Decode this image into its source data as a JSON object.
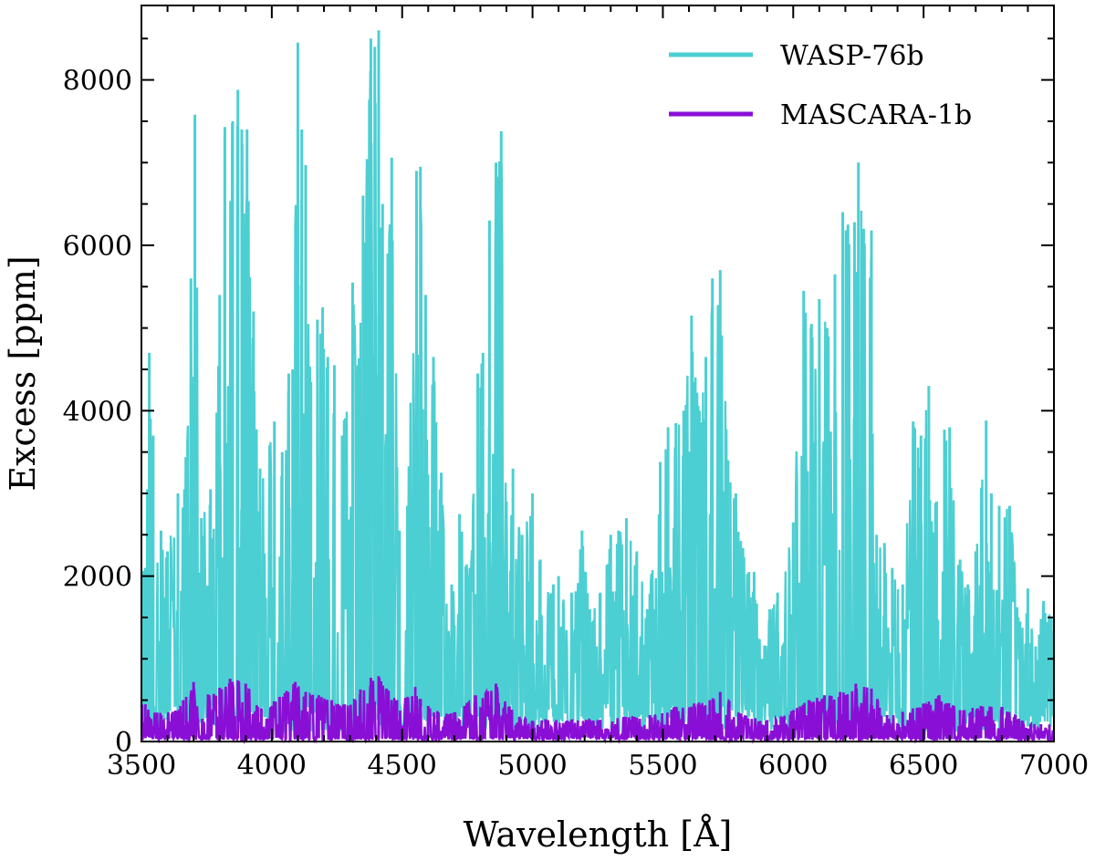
{
  "chart_data": {
    "type": "line",
    "title": "",
    "xlabel": "Wavelength [Å]",
    "ylabel": "Excess [ppm]",
    "xlim": [
      3500,
      7000
    ],
    "ylim": [
      0,
      8900
    ],
    "xticks": [
      3500,
      4000,
      4500,
      5000,
      5500,
      6000,
      6500,
      7000
    ],
    "yticks": [
      0,
      2000,
      4000,
      6000,
      8000
    ],
    "grid": false,
    "legend_position": "top-right",
    "series": [
      {
        "name": "WASP-76b",
        "color": "#4ccfd2",
        "baseline": 300,
        "peaks": [
          [
            3515,
            2100
          ],
          [
            3530,
            4700
          ],
          [
            3545,
            3700
          ],
          [
            3575,
            2550
          ],
          [
            3600,
            2300
          ],
          [
            3640,
            3000
          ],
          [
            3665,
            3050
          ],
          [
            3690,
            5600
          ],
          [
            3705,
            7580
          ],
          [
            3730,
            2700
          ],
          [
            3765,
            3050
          ],
          [
            3800,
            5400
          ],
          [
            3820,
            7430
          ],
          [
            3850,
            7500
          ],
          [
            3870,
            7880
          ],
          [
            3885,
            7400
          ],
          [
            3905,
            7400
          ],
          [
            3930,
            5200
          ],
          [
            3955,
            3300
          ],
          [
            4010,
            3870
          ],
          [
            4040,
            3500
          ],
          [
            4065,
            4450
          ],
          [
            4080,
            4500
          ],
          [
            4100,
            8450
          ],
          [
            4115,
            7400
          ],
          [
            4130,
            6970
          ],
          [
            4150,
            4350
          ],
          [
            4175,
            5100
          ],
          [
            4195,
            5250
          ],
          [
            4215,
            4650
          ],
          [
            4240,
            4550
          ],
          [
            4270,
            3700
          ],
          [
            4310,
            5550
          ],
          [
            4330,
            4550
          ],
          [
            4350,
            6600
          ],
          [
            4380,
            8500
          ],
          [
            4395,
            8400
          ],
          [
            4410,
            8600
          ],
          [
            4425,
            6500
          ],
          [
            4445,
            5900
          ],
          [
            4460,
            7060
          ],
          [
            4490,
            2550
          ],
          [
            4520,
            2850
          ],
          [
            4555,
            6900
          ],
          [
            4570,
            6950
          ],
          [
            4590,
            5400
          ],
          [
            4620,
            4650
          ],
          [
            4650,
            3250
          ],
          [
            4690,
            1900
          ],
          [
            4720,
            2750
          ],
          [
            4760,
            2100
          ],
          [
            4790,
            4450
          ],
          [
            4810,
            4700
          ],
          [
            4835,
            6300
          ],
          [
            4860,
            7000
          ],
          [
            4880,
            7380
          ],
          [
            4900,
            2900
          ],
          [
            4925,
            3300
          ],
          [
            4960,
            2500
          ],
          [
            5000,
            3000
          ],
          [
            5030,
            2200
          ],
          [
            5080,
            1900
          ],
          [
            5100,
            2000
          ],
          [
            5150,
            1800
          ],
          [
            5190,
            2550
          ],
          [
            5220,
            1600
          ],
          [
            5260,
            1800
          ],
          [
            5300,
            2500
          ],
          [
            5330,
            2550
          ],
          [
            5360,
            2700
          ],
          [
            5400,
            2300
          ],
          [
            5440,
            1600
          ],
          [
            5490,
            3380
          ],
          [
            5520,
            3800
          ],
          [
            5550,
            3850
          ],
          [
            5580,
            4000
          ],
          [
            5610,
            5150
          ],
          [
            5640,
            4000
          ],
          [
            5665,
            4650
          ],
          [
            5690,
            5600
          ],
          [
            5720,
            5700
          ],
          [
            5750,
            3400
          ],
          [
            5780,
            3000
          ],
          [
            5830,
            2050
          ],
          [
            5850,
            2050
          ],
          [
            5880,
            1000
          ],
          [
            5910,
            1600
          ],
          [
            5940,
            1800
          ],
          [
            6000,
            2650
          ],
          [
            6040,
            5450
          ],
          [
            6070,
            5050
          ],
          [
            6100,
            5350
          ],
          [
            6130,
            5000
          ],
          [
            6160,
            5650
          ],
          [
            6190,
            6400
          ],
          [
            6210,
            6250
          ],
          [
            6235,
            6280
          ],
          [
            6250,
            7000
          ],
          [
            6270,
            6200
          ],
          [
            6300,
            6180
          ],
          [
            6320,
            2500
          ],
          [
            6350,
            2400
          ],
          [
            6380,
            2100
          ],
          [
            6420,
            1900
          ],
          [
            6460,
            3870
          ],
          [
            6490,
            3700
          ],
          [
            6520,
            4300
          ],
          [
            6550,
            2900
          ],
          [
            6580,
            3770
          ],
          [
            6600,
            3800
          ],
          [
            6640,
            2200
          ],
          [
            6670,
            1900
          ],
          [
            6700,
            2300
          ],
          [
            6740,
            3880
          ],
          [
            6760,
            3000
          ],
          [
            6790,
            2850
          ],
          [
            6830,
            2850
          ],
          [
            6870,
            1450
          ],
          [
            6900,
            1850
          ],
          [
            6930,
            1150
          ],
          [
            6960,
            1700
          ],
          [
            6990,
            1500
          ]
        ]
      },
      {
        "name": "MASCARA-1b",
        "color": "#8a0fd6",
        "baseline": 40,
        "peaks": [
          [
            3515,
            450
          ],
          [
            3560,
            350
          ],
          [
            3620,
            360
          ],
          [
            3660,
            500
          ],
          [
            3700,
            720
          ],
          [
            3760,
            560
          ],
          [
            3800,
            650
          ],
          [
            3840,
            760
          ],
          [
            3870,
            740
          ],
          [
            3900,
            700
          ],
          [
            3960,
            400
          ],
          [
            4030,
            540
          ],
          [
            4090,
            720
          ],
          [
            4130,
            600
          ],
          [
            4180,
            560
          ],
          [
            4230,
            500
          ],
          [
            4280,
            450
          ],
          [
            4340,
            630
          ],
          [
            4380,
            770
          ],
          [
            4410,
            790
          ],
          [
            4440,
            640
          ],
          [
            4480,
            500
          ],
          [
            4550,
            660
          ],
          [
            4600,
            430
          ],
          [
            4680,
            330
          ],
          [
            4780,
            560
          ],
          [
            4860,
            700
          ],
          [
            4950,
            300
          ],
          [
            5050,
            270
          ],
          [
            5150,
            260
          ],
          [
            5250,
            260
          ],
          [
            5350,
            300
          ],
          [
            5450,
            320
          ],
          [
            5550,
            420
          ],
          [
            5620,
            460
          ],
          [
            5680,
            500
          ],
          [
            5720,
            600
          ],
          [
            5800,
            340
          ],
          [
            5900,
            260
          ],
          [
            6000,
            380
          ],
          [
            6060,
            500
          ],
          [
            6120,
            560
          ],
          [
            6180,
            600
          ],
          [
            6240,
            700
          ],
          [
            6300,
            640
          ],
          [
            6360,
            320
          ],
          [
            6420,
            360
          ],
          [
            6500,
            460
          ],
          [
            6560,
            560
          ],
          [
            6640,
            380
          ],
          [
            6720,
            430
          ],
          [
            6800,
            420
          ],
          [
            6880,
            250
          ],
          [
            6950,
            210
          ]
        ]
      }
    ]
  }
}
